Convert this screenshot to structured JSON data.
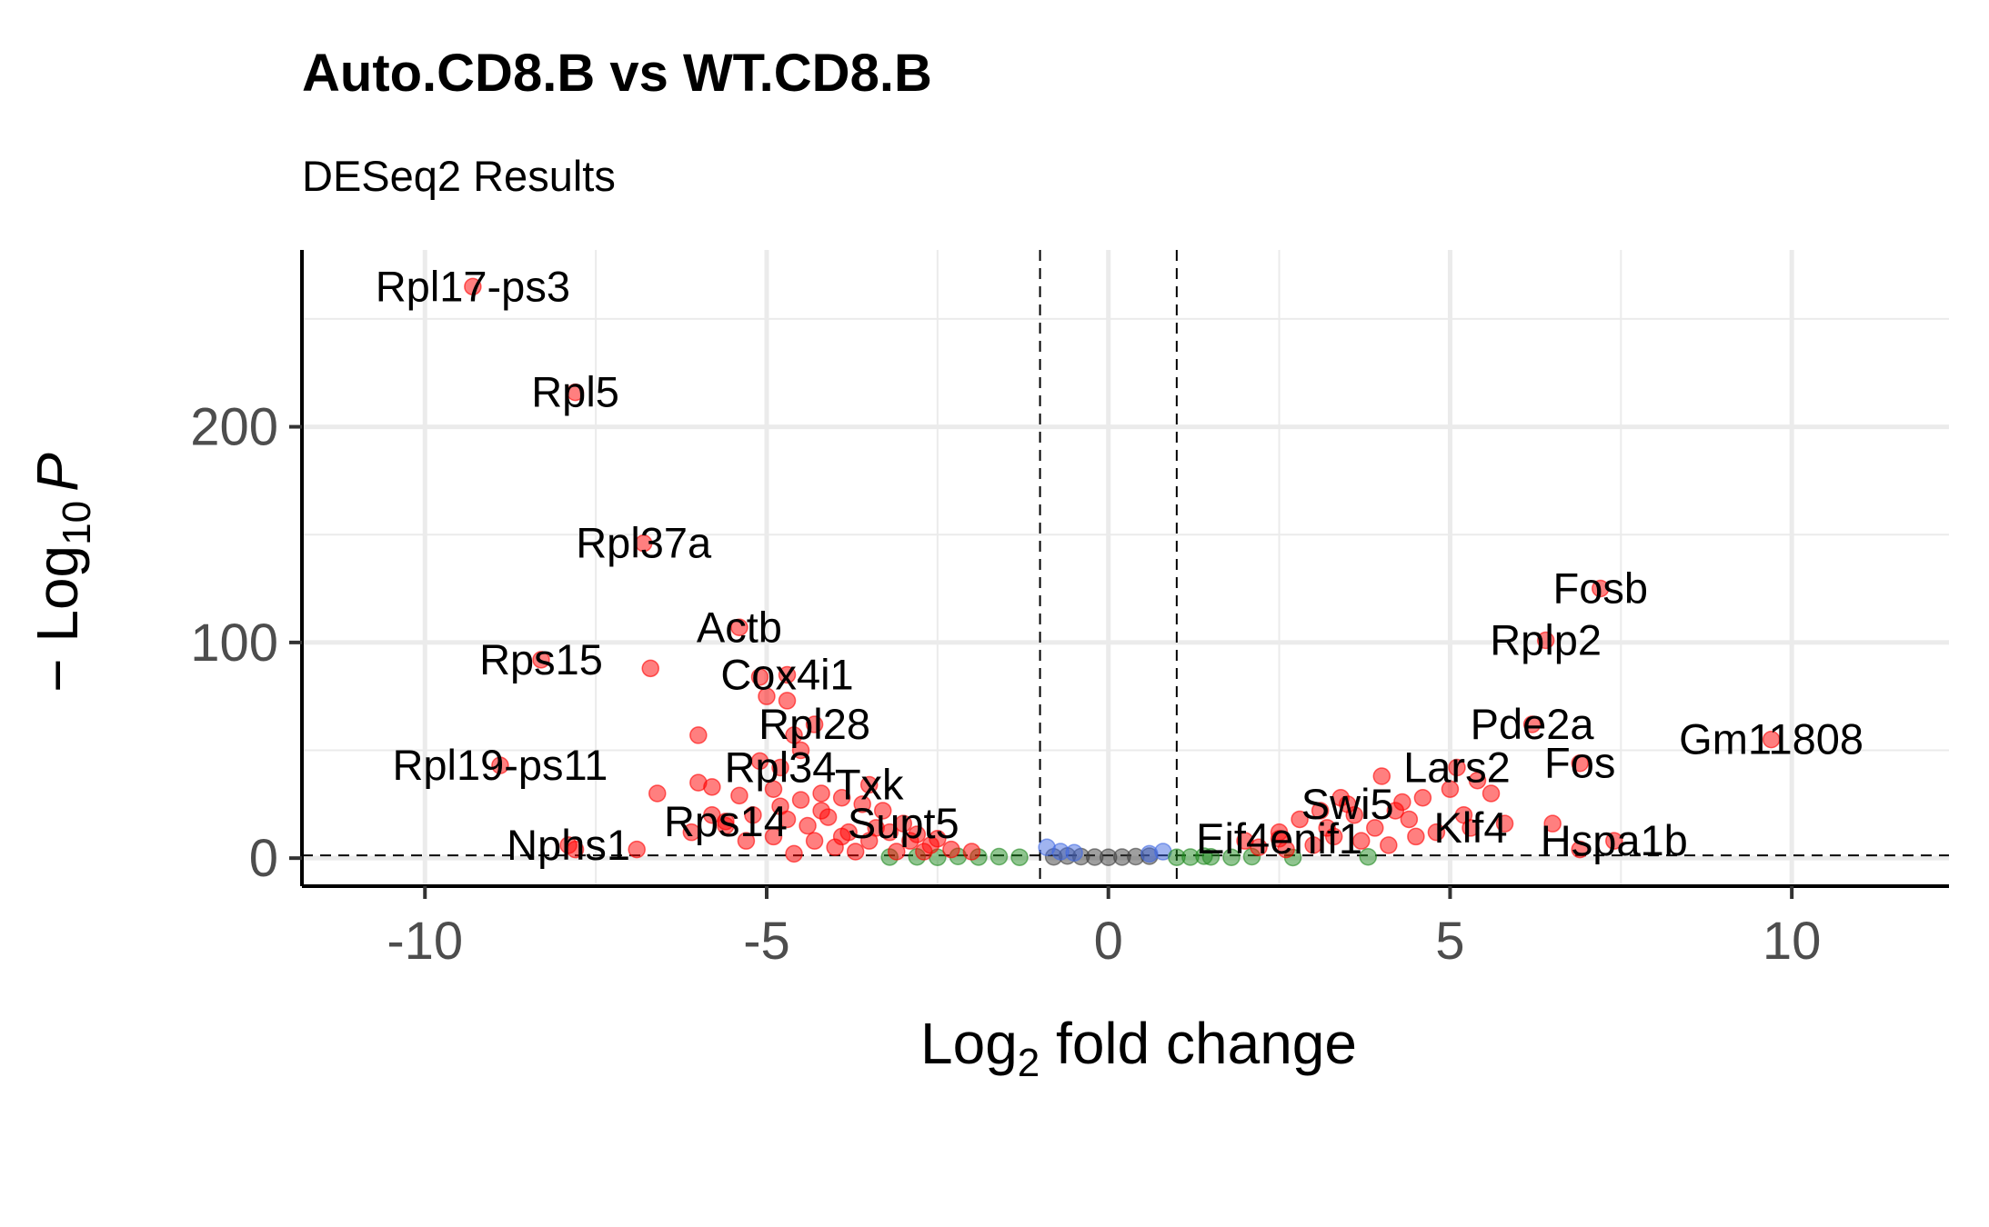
{
  "chart_data": {
    "type": "scatter",
    "title": "Auto.CD8.B vs WT.CD8.B",
    "subtitle": "DESeq2 Results",
    "xlabel_main": "Log",
    "xlabel_sub": "2",
    "xlabel_rest": " fold change",
    "ylabel_pre": "− Log",
    "ylabel_sub": "10",
    "ylabel_var": "P",
    "xlim": [
      -11.8,
      12.3
    ],
    "ylim": [
      -13,
      282
    ],
    "x_ticks": [
      -10,
      -5,
      0,
      5,
      10
    ],
    "x_tick_labels": [
      "-10",
      "-5",
      "0",
      "5",
      "10"
    ],
    "y_ticks": [
      0,
      100,
      200
    ],
    "y_tick_labels": [
      "0",
      "100",
      "200"
    ],
    "grid": true,
    "fc_cutoff": [
      -1,
      1
    ],
    "p_cutoff": 1.3,
    "colors": {
      "significant": "#ff0000",
      "log2fc_only": "#228b22",
      "p_only": "#4169e1",
      "ns": "#404040",
      "grid": "#ebebeb",
      "axis": "#000000"
    },
    "labeled_genes": [
      {
        "gene": "Rpl17-ps3",
        "x": -9.3,
        "y": 265
      },
      {
        "gene": "Rpl5",
        "x": -7.8,
        "y": 216
      },
      {
        "gene": "Rpl37a",
        "x": -6.8,
        "y": 146
      },
      {
        "gene": "Rps15",
        "x": -8.3,
        "y": 92
      },
      {
        "gene": "Actb",
        "x": -5.4,
        "y": 107
      },
      {
        "gene": "Cox4i1",
        "x": -4.7,
        "y": 85
      },
      {
        "gene": "Rpl28",
        "x": -4.3,
        "y": 62
      },
      {
        "gene": "Rpl19-ps11",
        "x": -8.9,
        "y": 43
      },
      {
        "gene": "Rpl34",
        "x": -4.8,
        "y": 42
      },
      {
        "gene": "Txk",
        "x": -3.5,
        "y": 34
      },
      {
        "gene": "Rps14",
        "x": -5.6,
        "y": 17
      },
      {
        "gene": "Supt5",
        "x": -3.0,
        "y": 16
      },
      {
        "gene": "Nphs1",
        "x": -7.9,
        "y": 6
      },
      {
        "gene": "Eif4enif1",
        "x": 2.5,
        "y": 9
      },
      {
        "gene": "Swi5",
        "x": 3.5,
        "y": 25
      },
      {
        "gene": "Lars2",
        "x": 5.1,
        "y": 42
      },
      {
        "gene": "Klf4",
        "x": 5.3,
        "y": 14
      },
      {
        "gene": "Fosb",
        "x": 7.2,
        "y": 125
      },
      {
        "gene": "Rplp2",
        "x": 6.4,
        "y": 101
      },
      {
        "gene": "Pde2a",
        "x": 6.2,
        "y": 62
      },
      {
        "gene": "Fos",
        "x": 6.9,
        "y": 44
      },
      {
        "gene": "Gm11808",
        "x": 9.7,
        "y": 55
      },
      {
        "gene": "Hspa1b",
        "x": 7.4,
        "y": 8
      }
    ],
    "significant_points": [
      {
        "x": -6.7,
        "y": 88
      },
      {
        "x": -5.1,
        "y": 84
      },
      {
        "x": -5.0,
        "y": 75
      },
      {
        "x": -4.7,
        "y": 73
      },
      {
        "x": -4.6,
        "y": 57
      },
      {
        "x": -6.0,
        "y": 57
      },
      {
        "x": -5.1,
        "y": 45
      },
      {
        "x": -4.5,
        "y": 50
      },
      {
        "x": -6.0,
        "y": 35
      },
      {
        "x": -5.8,
        "y": 33
      },
      {
        "x": -5.4,
        "y": 29
      },
      {
        "x": -6.6,
        "y": 30
      },
      {
        "x": -4.9,
        "y": 32
      },
      {
        "x": -4.5,
        "y": 27
      },
      {
        "x": -4.2,
        "y": 30
      },
      {
        "x": -3.9,
        "y": 28
      },
      {
        "x": -3.6,
        "y": 25
      },
      {
        "x": -3.3,
        "y": 22
      },
      {
        "x": -5.8,
        "y": 20
      },
      {
        "x": -5.6,
        "y": 15
      },
      {
        "x": -6.1,
        "y": 12
      },
      {
        "x": -5.3,
        "y": 8
      },
      {
        "x": -4.9,
        "y": 10
      },
      {
        "x": -4.7,
        "y": 18
      },
      {
        "x": -4.4,
        "y": 15
      },
      {
        "x": -4.1,
        "y": 19
      },
      {
        "x": -3.8,
        "y": 12
      },
      {
        "x": -3.5,
        "y": 8
      },
      {
        "x": -3.2,
        "y": 12
      },
      {
        "x": -2.9,
        "y": 8
      },
      {
        "x": -2.6,
        "y": 6
      },
      {
        "x": -2.3,
        "y": 4
      },
      {
        "x": -6.9,
        "y": 4
      },
      {
        "x": -7.8,
        "y": 4
      },
      {
        "x": -4.6,
        "y": 2
      },
      {
        "x": -4.0,
        "y": 5
      },
      {
        "x": -3.7,
        "y": 3
      },
      {
        "x": -3.1,
        "y": 3
      },
      {
        "x": -2.7,
        "y": 3
      },
      {
        "x": -2.0,
        "y": 3
      },
      {
        "x": -4.3,
        "y": 8
      },
      {
        "x": -3.9,
        "y": 10
      },
      {
        "x": -3.4,
        "y": 14
      },
      {
        "x": -2.8,
        "y": 11
      },
      {
        "x": -2.5,
        "y": 9
      },
      {
        "x": -5.2,
        "y": 20
      },
      {
        "x": -4.8,
        "y": 24
      },
      {
        "x": -4.2,
        "y": 22
      },
      {
        "x": 2.2,
        "y": 5
      },
      {
        "x": 2.5,
        "y": 12
      },
      {
        "x": 2.8,
        "y": 18
      },
      {
        "x": 3.1,
        "y": 22
      },
      {
        "x": 3.4,
        "y": 28
      },
      {
        "x": 3.6,
        "y": 20
      },
      {
        "x": 3.9,
        "y": 14
      },
      {
        "x": 4.0,
        "y": 38
      },
      {
        "x": 4.2,
        "y": 22
      },
      {
        "x": 4.4,
        "y": 18
      },
      {
        "x": 4.6,
        "y": 28
      },
      {
        "x": 4.8,
        "y": 12
      },
      {
        "x": 5.0,
        "y": 32
      },
      {
        "x": 5.2,
        "y": 20
      },
      {
        "x": 5.4,
        "y": 36
      },
      {
        "x": 5.6,
        "y": 30
      },
      {
        "x": 5.8,
        "y": 16
      },
      {
        "x": 6.5,
        "y": 16
      },
      {
        "x": 6.9,
        "y": 4
      },
      {
        "x": 3.0,
        "y": 6
      },
      {
        "x": 3.3,
        "y": 10
      },
      {
        "x": 3.7,
        "y": 8
      },
      {
        "x": 4.1,
        "y": 6
      },
      {
        "x": 4.5,
        "y": 10
      },
      {
        "x": 2.6,
        "y": 4
      },
      {
        "x": 2.0,
        "y": 8
      },
      {
        "x": 3.2,
        "y": 14
      },
      {
        "x": 4.3,
        "y": 26
      }
    ],
    "log2fc_only_points": [
      {
        "x": -3.2,
        "y": 0.5
      },
      {
        "x": -2.8,
        "y": 0.6
      },
      {
        "x": -2.5,
        "y": 0.4
      },
      {
        "x": -2.2,
        "y": 0.8
      },
      {
        "x": -1.9,
        "y": 0.5
      },
      {
        "x": -1.6,
        "y": 0.7
      },
      {
        "x": -1.3,
        "y": 0.4
      },
      {
        "x": 1.2,
        "y": 0.5
      },
      {
        "x": 1.5,
        "y": 0.6
      },
      {
        "x": 1.8,
        "y": 0.4
      },
      {
        "x": 2.1,
        "y": 0.7
      },
      {
        "x": 2.7,
        "y": 0.3
      },
      {
        "x": 3.8,
        "y": 0.6
      },
      {
        "x": 1.4,
        "y": 0.9
      },
      {
        "x": 1.0,
        "y": 0.4
      }
    ],
    "p_only_points": [
      {
        "x": -0.9,
        "y": 5
      },
      {
        "x": -0.7,
        "y": 3
      },
      {
        "x": -0.5,
        "y": 2.5
      },
      {
        "x": 0.6,
        "y": 2
      },
      {
        "x": 0.8,
        "y": 3
      }
    ],
    "ns_points": [
      {
        "x": -0.6,
        "y": 1.0
      },
      {
        "x": -0.4,
        "y": 0.7
      },
      {
        "x": -0.2,
        "y": 0.5
      },
      {
        "x": 0.0,
        "y": 0.4
      },
      {
        "x": 0.2,
        "y": 0.5
      },
      {
        "x": 0.4,
        "y": 0.7
      },
      {
        "x": 0.6,
        "y": 0.9
      },
      {
        "x": -0.8,
        "y": 0.6
      }
    ]
  }
}
